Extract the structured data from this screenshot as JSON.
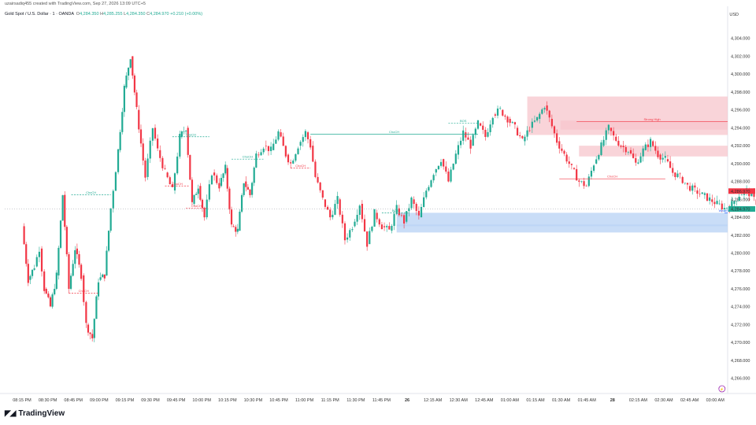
{
  "header": {
    "created_by": "uzairsadiq455 created with TradingView.com, Sep 27, 2026 13:09 UTC+5",
    "symbol": "Gold Spot / U.S. Dollar · 1 · OANDA",
    "o_label": "O",
    "o": "4,284.350",
    "h_label": "H",
    "h": "4,285.255",
    "l_label": "L",
    "l": "4,284.350",
    "c_label": "C",
    "c": "4,284.970",
    "change": "+0.210 (+0.00%)",
    "currency": "USD"
  },
  "footer": {
    "brand": "TradingView",
    "logo_icon": "tradingview-logo-icon"
  },
  "colors": {
    "up": "#22ab94",
    "down": "#f23645",
    "supply_zone": "#f7c6cc",
    "demand_zone": "#bcd4f5"
  },
  "chart_data": {
    "type": "candlestick",
    "ylim": [
      4265.0,
      4306.0
    ],
    "y_ticks": [
      "4,266.000",
      "4,268.000",
      "4,270.000",
      "4,272.000",
      "4,274.000",
      "4,276.000",
      "4,278.000",
      "4,280.000",
      "4,282.000",
      "4,284.000",
      "4,286.000",
      "4,288.000",
      "4,290.000",
      "4,292.000",
      "4,294.000",
      "4,296.000",
      "4,298.000",
      "4,300.000",
      "4,302.000",
      "4,304.000"
    ],
    "x_ticks": [
      "08:15 PM",
      "08:30 PM",
      "08:45 PM",
      "09:00 PM",
      "09:15 PM",
      "09:30 PM",
      "09:45 PM",
      "10:00 PM",
      "10:15 PM",
      "10:30 PM",
      "10:45 PM",
      "11:00 PM",
      "11:15 PM",
      "11:30 PM",
      "11:45 PM",
      "26",
      "12:15 AM",
      "12:30 AM",
      "12:45 AM",
      "01:00 AM",
      "01:15 AM",
      "01:30 AM",
      "01:45 AM",
      "28",
      "02:15 AM",
      "02:30 AM",
      "02:45 AM",
      "03:00 AM"
    ],
    "price_labels": [
      {
        "value": "4,286.970",
        "color": "#f23645"
      },
      {
        "value": "4,284.970",
        "color": "#22ab94"
      }
    ],
    "last_price": 4284.97,
    "path": [
      [
        0,
        4283.0
      ],
      [
        0.05,
        4277.0
      ],
      [
        0.1,
        4278.5
      ],
      [
        0.14,
        4280.5
      ],
      [
        0.18,
        4276.0
      ],
      [
        0.23,
        4274.0
      ],
      [
        0.28,
        4277.5
      ],
      [
        0.33,
        4286.5
      ],
      [
        0.38,
        4276.0
      ],
      [
        0.43,
        4280.5
      ],
      [
        0.48,
        4277.5
      ],
      [
        0.52,
        4272.0
      ],
      [
        0.57,
        4270.5
      ],
      [
        0.62,
        4277.0
      ],
      [
        0.67,
        4277.5
      ],
      [
        0.72,
        4285.0
      ],
      [
        0.78,
        4291.5
      ],
      [
        0.83,
        4298.5
      ],
      [
        0.88,
        4302.0
      ],
      [
        0.93,
        4296.0
      ],
      [
        1.0,
        4288.5
      ],
      [
        1.06,
        4294.0
      ],
      [
        1.1,
        4291.5
      ],
      [
        1.16,
        4289.0
      ],
      [
        1.22,
        4287.0
      ],
      [
        1.28,
        4293.0
      ],
      [
        1.33,
        4294.0
      ],
      [
        1.38,
        4285.5
      ],
      [
        1.43,
        4287.5
      ],
      [
        1.48,
        4284.0
      ],
      [
        1.54,
        4289.0
      ],
      [
        1.6,
        4287.5
      ],
      [
        1.65,
        4289.5
      ],
      [
        1.7,
        4283.0
      ],
      [
        1.75,
        4282.5
      ],
      [
        1.8,
        4288.0
      ],
      [
        1.85,
        4286.5
      ],
      [
        1.9,
        4291.0
      ],
      [
        1.96,
        4292.0
      ],
      [
        2.02,
        4291.5
      ],
      [
        2.08,
        4293.5
      ],
      [
        2.14,
        4291.0
      ],
      [
        2.18,
        4290.0
      ],
      [
        2.24,
        4292.0
      ],
      [
        2.3,
        4293.5
      ],
      [
        2.34,
        4292.0
      ],
      [
        2.38,
        4288.5
      ],
      [
        2.44,
        4286.0
      ],
      [
        2.5,
        4284.0
      ],
      [
        2.56,
        4286.0
      ],
      [
        2.62,
        4281.5
      ],
      [
        2.68,
        4283.0
      ],
      [
        2.74,
        4285.5
      ],
      [
        2.8,
        4281.0
      ],
      [
        2.86,
        4284.5
      ],
      [
        2.92,
        4283.0
      ],
      [
        2.98,
        4282.5
      ],
      [
        3.04,
        4285.0
      ],
      [
        3.1,
        4283.5
      ],
      [
        3.16,
        4286.0
      ],
      [
        3.22,
        4284.0
      ],
      [
        3.28,
        4287.0
      ],
      [
        3.34,
        4289.0
      ],
      [
        3.4,
        4290.5
      ],
      [
        3.46,
        4288.0
      ],
      [
        3.52,
        4291.0
      ],
      [
        3.58,
        4293.5
      ],
      [
        3.64,
        4292.0
      ],
      [
        3.7,
        4294.5
      ],
      [
        3.76,
        4293.0
      ],
      [
        3.82,
        4295.5
      ],
      [
        3.88,
        4296.0
      ],
      [
        3.94,
        4295.0
      ],
      [
        4.0,
        4294.0
      ],
      [
        4.06,
        4292.5
      ],
      [
        4.12,
        4294.0
      ],
      [
        4.18,
        4295.0
      ],
      [
        4.24,
        4296.5
      ],
      [
        4.28,
        4295.0
      ],
      [
        4.34,
        4292.5
      ],
      [
        4.4,
        4291.0
      ],
      [
        4.46,
        4289.5
      ],
      [
        4.52,
        4288.0
      ],
      [
        4.58,
        4287.5
      ],
      [
        4.64,
        4290.0
      ],
      [
        4.7,
        4292.0
      ],
      [
        4.76,
        4294.0
      ],
      [
        4.8,
        4293.0
      ],
      [
        4.86,
        4292.0
      ],
      [
        4.92,
        4291.5
      ],
      [
        4.98,
        4290.0
      ],
      [
        5.04,
        4291.5
      ],
      [
        5.1,
        4292.5
      ],
      [
        5.16,
        4291.0
      ],
      [
        5.22,
        4290.5
      ],
      [
        5.28,
        4289.0
      ],
      [
        5.34,
        4288.5
      ],
      [
        5.4,
        4287.5
      ],
      [
        5.46,
        4287.0
      ],
      [
        5.52,
        4286.5
      ],
      [
        5.58,
        4286.0
      ],
      [
        5.64,
        4285.5
      ],
      [
        5.7,
        4285.0
      ],
      [
        5.76,
        4285.5
      ],
      [
        5.82,
        4286.5
      ],
      [
        5.88,
        4287.0
      ],
      [
        5.94,
        4286.0
      ],
      [
        6.0,
        4285.0
      ]
    ],
    "zones": [
      {
        "type": "supply",
        "from": 4.1,
        "to": 6.62,
        "low": 4293.2,
        "high": 4297.5
      },
      {
        "type": "supply",
        "from": 4.37,
        "to": 6.62,
        "low": 4293.8,
        "high": 4294.8
      },
      {
        "type": "supply",
        "from": 4.52,
        "to": 6.62,
        "low": 4290.8,
        "high": 4292.0
      },
      {
        "type": "demand",
        "from": 3.04,
        "to": 6.62,
        "low": 4283.0,
        "high": 4284.5
      },
      {
        "type": "demand",
        "from": 3.04,
        "to": 6.62,
        "low": 4282.3,
        "high": 4283.2
      }
    ],
    "annotations": [
      {
        "label": "ChoCH",
        "color": "#22ab94",
        "x1": 0.4,
        "x2": 0.72,
        "y": 4286.5,
        "style": "dashed"
      },
      {
        "label": "ChoCH",
        "color": "#f23645",
        "x1": 0.38,
        "x2": 0.62,
        "y": 4275.5,
        "style": "dashed"
      },
      {
        "label": "ChoCH",
        "color": "#22ab94",
        "x1": 2.34,
        "x2": 3.7,
        "y": 4293.3,
        "style": "solid"
      },
      {
        "label": "ChoCH",
        "color": "#f23645",
        "x1": 4.36,
        "x2": 5.22,
        "y": 4288.3,
        "style": "solid"
      },
      {
        "label": "Strong High",
        "color": "#f23645",
        "x1": 4.5,
        "x2": 6.62,
        "y": 4294.7,
        "style": "solid"
      },
      {
        "label": "Weak Low",
        "color": "#2962ff",
        "x1": 5.7,
        "x2": 6.62,
        "y": 4284.5,
        "style": "solid"
      },
      {
        "label": "ChoCH",
        "color": "#22ab94",
        "x1": 1.22,
        "x2": 1.52,
        "y": 4293.0,
        "style": "dashed"
      },
      {
        "label": "ChoCH",
        "color": "#22ab94",
        "x1": 1.7,
        "x2": 1.96,
        "y": 4290.5,
        "style": "dashed"
      },
      {
        "label": "ChoCH",
        "color": "#f23645",
        "x1": 1.16,
        "x2": 1.36,
        "y": 4287.5,
        "style": "dashed"
      },
      {
        "label": "ChoCH",
        "color": "#f23645",
        "x1": 1.33,
        "x2": 1.5,
        "y": 4285.0,
        "style": "dashed"
      },
      {
        "label": "ChoCH",
        "color": "#f23645",
        "x1": 2.18,
        "x2": 2.34,
        "y": 4289.5,
        "style": "dashed"
      },
      {
        "label": "BOS",
        "color": "#22ab94",
        "x1": 3.46,
        "x2": 3.7,
        "y": 4294.5,
        "style": "dashed"
      },
      {
        "label": "BOS",
        "color": "#22ab94",
        "x1": 2.92,
        "x2": 3.14,
        "y": 4284.5,
        "style": "dashed"
      }
    ]
  }
}
